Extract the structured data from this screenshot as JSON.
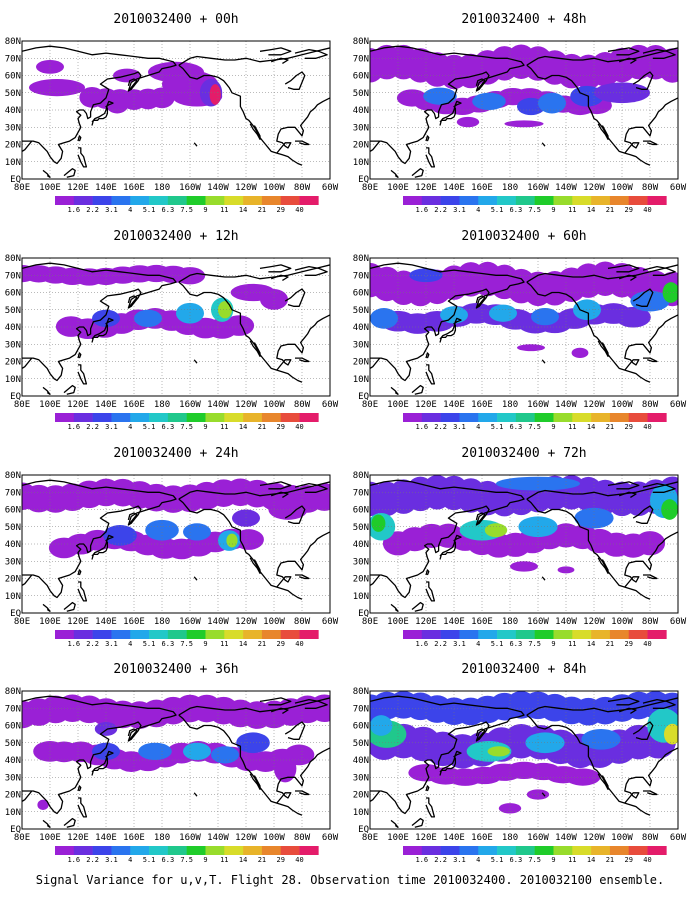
{
  "colorbar": {
    "labels": [
      "1.6",
      "2.2",
      "3.1",
      "4",
      "5.1",
      "6.3",
      "7.5",
      "9",
      "11",
      "14",
      "21",
      "29",
      "40"
    ],
    "colors": [
      "#9a20d6",
      "#6a2ee0",
      "#3c44ea",
      "#2a74ef",
      "#22a8ea",
      "#22c8c8",
      "#20c88c",
      "#1fcc2a",
      "#98dc2c",
      "#d8dc2a",
      "#e8b42a",
      "#e8862c",
      "#e84c3c",
      "#e41c6a"
    ]
  },
  "axes": {
    "x_ticks": [
      "80E",
      "100E",
      "120E",
      "140E",
      "160E",
      "180",
      "160W",
      "140W",
      "120W",
      "100W",
      "80W",
      "60W"
    ],
    "y_ticks": [
      "EQ",
      "10N",
      "20N",
      "30N",
      "40N",
      "50N",
      "60N",
      "70N",
      "80N"
    ]
  },
  "panels": [
    {
      "title": "2010032400 + 00h",
      "level": 0
    },
    {
      "title": "2010032400 + 48h",
      "level": 1
    },
    {
      "title": "2010032400 + 12h",
      "level": 2
    },
    {
      "title": "2010032400 + 60h",
      "level": 3
    },
    {
      "title": "2010032400 + 24h",
      "level": 4
    },
    {
      "title": "2010032400 + 72h",
      "level": 5
    },
    {
      "title": "2010032400 + 36h",
      "level": 6
    },
    {
      "title": "2010032400 + 84h",
      "level": 7
    }
  ],
  "footer": "Signal Variance for u,v,T. Flight 28. Observation time 2010032400. 2010032100 ensemble."
}
